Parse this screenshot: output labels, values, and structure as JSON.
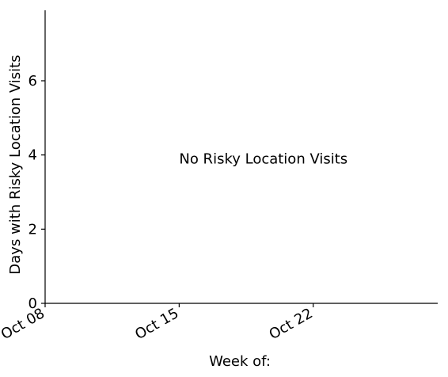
{
  "chart_data": {
    "type": "bar",
    "title": "",
    "xlabel": "Week of:",
    "ylabel": "Days with Risky Location Visits",
    "x_ticks": [
      "Oct 08",
      "Oct 15",
      "Oct 22"
    ],
    "y_ticks": [
      0,
      2,
      4,
      6
    ],
    "ylim": [
      0,
      7.9
    ],
    "xlim_days": [
      0,
      20.5
    ],
    "x_tick_days": [
      0,
      7,
      14
    ],
    "categories": [],
    "values": [],
    "annotation": "No Risky Location Visits",
    "annotation_day": 7,
    "annotation_y": 3.9,
    "grid": false,
    "legend": "none"
  }
}
